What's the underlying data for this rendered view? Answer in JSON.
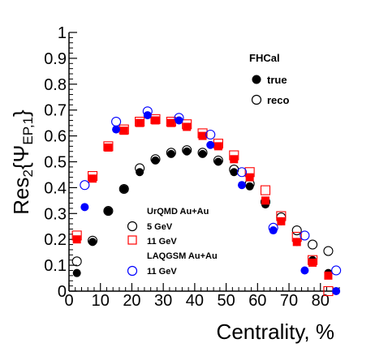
{
  "chart_data": {
    "type": "scatter",
    "xlabel": "Centrality, %",
    "ylabel": "Res",
    "ylabel_sub": "2",
    "ylabel_brace_open": "{",
    "ylabel_psi": "Ψ",
    "ylabel_psi_sub": "EP,1",
    "ylabel_brace_close": "}",
    "xlim": [
      0,
      86
    ],
    "ylim": [
      0,
      1
    ],
    "x_ticks": [
      0,
      10,
      20,
      30,
      40,
      50,
      60,
      70,
      80
    ],
    "y_ticks": [
      0,
      0.1,
      0.2,
      0.3,
      0.4,
      0.5,
      0.6,
      0.7,
      0.8,
      0.9,
      1
    ],
    "x_tick_labels": [
      "0",
      "10",
      "20",
      "30",
      "40",
      "50",
      "60",
      "70",
      "80"
    ],
    "y_tick_labels": [
      "0",
      "0.1",
      "0.2",
      "0.3",
      "0.4",
      "0.5",
      "0.6",
      "0.7",
      "0.8",
      "0.9",
      "1"
    ],
    "grid": false,
    "legend_top": {
      "title": "FHCal",
      "entries": [
        {
          "label": "true",
          "marker": "filled-circle"
        },
        {
          "label": "reco",
          "marker": "open-circle"
        }
      ]
    },
    "legend_bottom": {
      "group1": "UrQMD Au+Au",
      "entries1": [
        {
          "label": "5 GeV",
          "marker": "open-circle",
          "color": "#000000"
        },
        {
          "label": "11 GeV",
          "marker": "open-square",
          "color": "#ff0000"
        }
      ],
      "group2": "LAQGSM Au+Au",
      "entries2": [
        {
          "label": "11 GeV",
          "marker": "open-circle",
          "color": "#0000ff"
        }
      ]
    },
    "series": [
      {
        "key": "urqmd_5_true",
        "marker": "filled-circle",
        "color": "#000000",
        "x": [
          2.5,
          7.5,
          12.5,
          17.5,
          22.5,
          27.5,
          32.5,
          37.5,
          42.5,
          47.5,
          52.5,
          57.5,
          62.5,
          67.5,
          72.5,
          77.5,
          82.5
        ],
        "y": [
          0.07,
          0.19,
          0.31,
          0.395,
          0.46,
          0.505,
          0.53,
          0.54,
          0.53,
          0.5,
          0.46,
          0.405,
          0.335,
          0.27,
          0.19,
          0.12,
          0.07
        ]
      },
      {
        "key": "urqmd_5_reco",
        "marker": "open-circle",
        "color": "#000000",
        "x": [
          2.5,
          7.5,
          12.5,
          17.5,
          22.5,
          27.5,
          32.5,
          37.5,
          42.5,
          47.5,
          52.5,
          57.5,
          62.5,
          67.5,
          72.5,
          77.5,
          82.5
        ],
        "y": [
          0.115,
          0.195,
          0.31,
          0.395,
          0.475,
          0.51,
          0.535,
          0.545,
          0.535,
          0.505,
          0.47,
          0.415,
          0.345,
          0.285,
          0.235,
          0.18,
          0.155
        ]
      },
      {
        "key": "urqmd_11_true",
        "marker": "filled-square",
        "color": "#ff0000",
        "x": [
          2.5,
          7.5,
          12.5,
          17.5,
          22.5,
          27.5,
          32.5,
          37.5,
          42.5,
          47.5,
          52.5,
          57.5,
          62.5,
          67.5,
          72.5,
          77.5,
          82.5
        ],
        "y": [
          0.2,
          0.435,
          0.555,
          0.62,
          0.65,
          0.66,
          0.65,
          0.635,
          0.6,
          0.56,
          0.51,
          0.44,
          0.35,
          0.27,
          0.19,
          0.11,
          0.06
        ]
      },
      {
        "key": "urqmd_11_reco",
        "marker": "open-square",
        "color": "#ff0000",
        "x": [
          2.5,
          7.5,
          12.5,
          17.5,
          22.5,
          27.5,
          32.5,
          37.5,
          42.5,
          47.5,
          52.5,
          57.5,
          62.5,
          67.5,
          72.5,
          77.5,
          82.5
        ],
        "y": [
          0.215,
          0.445,
          0.56,
          0.625,
          0.655,
          0.665,
          0.655,
          0.645,
          0.61,
          0.57,
          0.525,
          0.46,
          0.39,
          0.29,
          0.21,
          0.12,
          0.0
        ]
      },
      {
        "key": "laqgsm_11_true",
        "marker": "filled-circle",
        "color": "#0000ff",
        "x": [
          5,
          15,
          25,
          35,
          45,
          55,
          65,
          75,
          85
        ],
        "y": [
          0.325,
          0.625,
          0.68,
          0.66,
          0.565,
          0.41,
          0.235,
          0.08,
          0.0
        ]
      },
      {
        "key": "laqgsm_11_reco",
        "marker": "open-circle",
        "color": "#0000ff",
        "x": [
          5,
          15,
          25,
          35,
          45,
          55,
          65,
          75,
          85
        ],
        "y": [
          0.41,
          0.655,
          0.695,
          0.67,
          0.605,
          0.46,
          0.245,
          0.215,
          0.08
        ]
      }
    ]
  }
}
